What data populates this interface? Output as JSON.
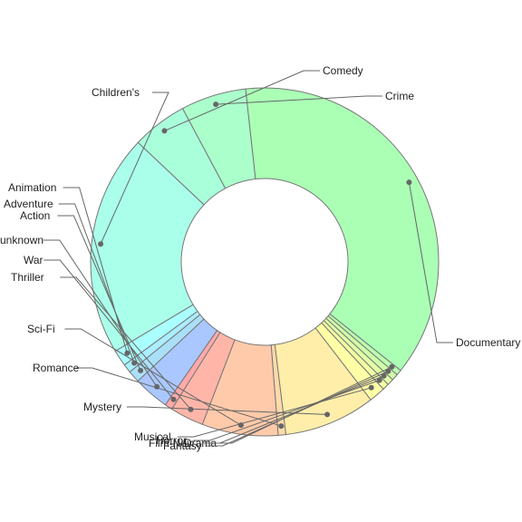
{
  "chart_data": {
    "type": "pie",
    "donut": true,
    "legend": "none",
    "categories": [
      "Documentary",
      "Drama",
      "Fantasy",
      "Film-Noir",
      "Horror",
      "Musical",
      "Mystery",
      "Romance",
      "Sci-Fi",
      "Thriller",
      "War",
      "unknown",
      "Action",
      "Adventure",
      "Animation",
      "Children's",
      "Comedy",
      "Crime"
    ],
    "values": [
      37.1,
      0.5,
      0.6,
      0.6,
      0.6,
      1.5,
      8.4,
      0.7,
      7.0,
      3.1,
      0.7,
      3.3,
      1.1,
      0.8,
      1.5,
      20.4,
      5.1,
      6.0
    ],
    "colors": [
      "#aaffb5",
      "#bbffb0",
      "#cfffa8",
      "#e2ffa6",
      "#f3ffa3",
      "#ffffa6",
      "#ffeeaa",
      "#ffdaa9",
      "#ffcaaa",
      "#ffb6a9",
      "#ffaaaa",
      "#aac8ff",
      "#aae0f7",
      "#aaeeff",
      "#aaffff",
      "#aaffea",
      "#aaffdb",
      "#aaffcb"
    ]
  }
}
